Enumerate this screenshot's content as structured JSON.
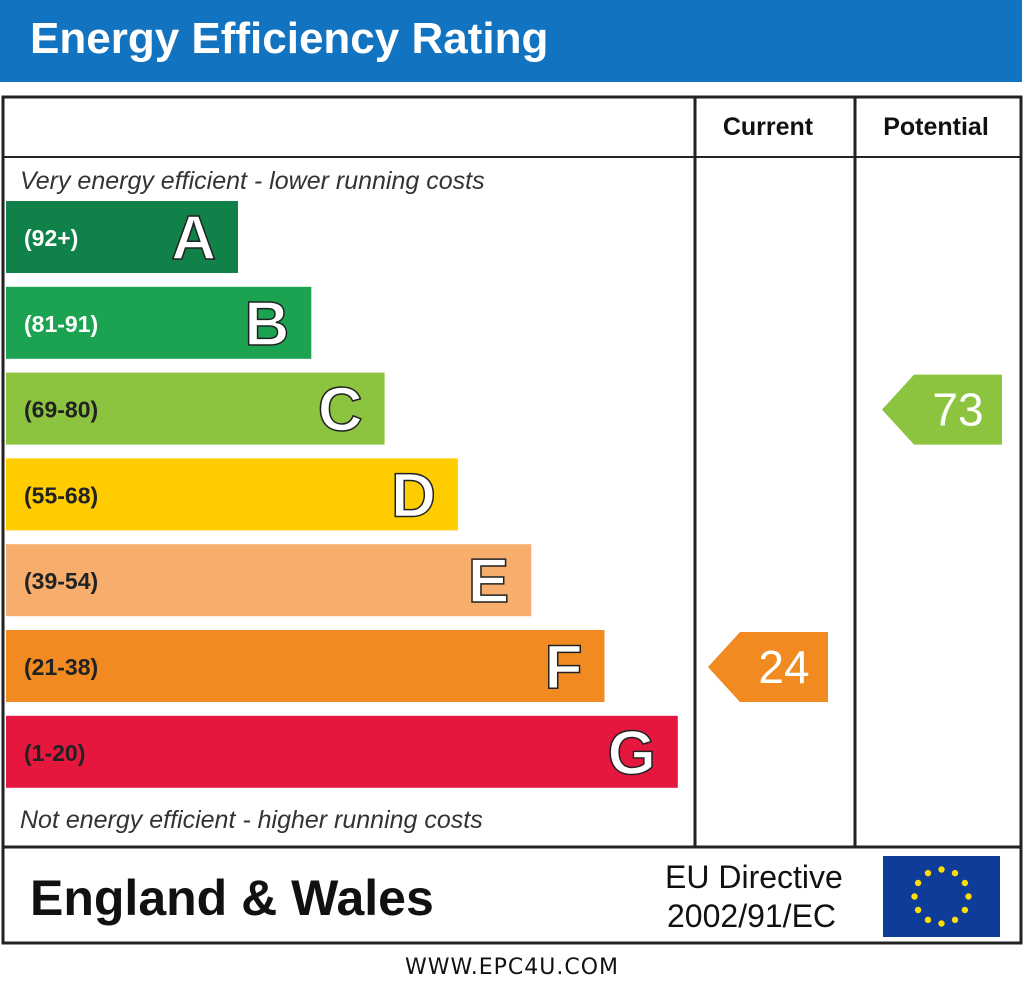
{
  "header": {
    "title": "Energy Efficiency Rating"
  },
  "columns": {
    "current": "Current",
    "potential": "Potential"
  },
  "captions": {
    "top": "Very energy efficient - lower running costs",
    "bottom": "Not energy efficient - higher running costs"
  },
  "footer": {
    "region": "England & Wales",
    "directive_line1": "EU Directive",
    "directive_line2": "2002/91/EC",
    "flag": "eu-flag-icon",
    "url": "WWW.EPC4U.COM"
  },
  "chart_data": {
    "type": "bar",
    "categories": [
      "A",
      "B",
      "C",
      "D",
      "E",
      "F",
      "G"
    ],
    "ranges": [
      "(92+)",
      "(81-91)",
      "(69-80)",
      "(55-68)",
      "(39-54)",
      "(21-38)",
      "(1-20)"
    ],
    "colors": [
      "#0f8149",
      "#1ba351",
      "#8cc43f",
      "#ffcc00",
      "#f7ad6c",
      "#f08a21",
      "#e5173f"
    ],
    "current": {
      "value": 24,
      "band": "F",
      "color": "#f08a21"
    },
    "potential": {
      "value": 73,
      "band": "C",
      "color": "#8cc43f"
    }
  }
}
